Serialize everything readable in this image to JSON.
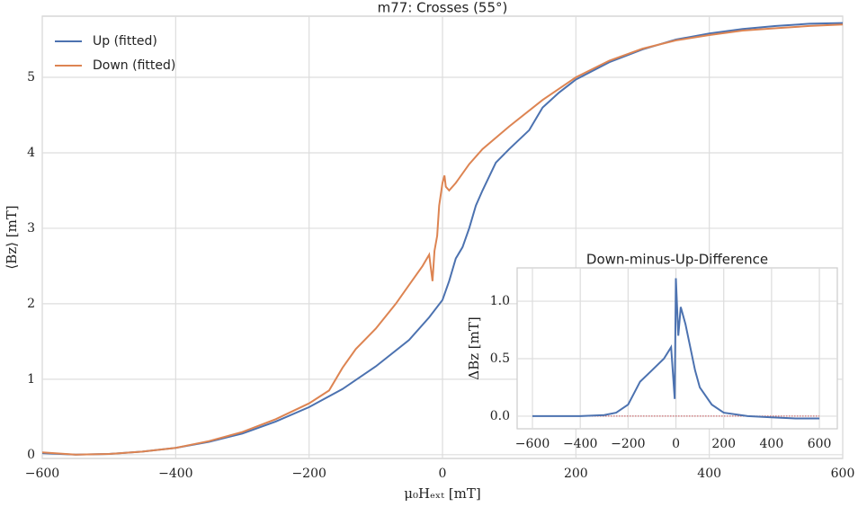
{
  "chart_data": [
    {
      "type": "line",
      "title": "m77: Crosses (55°)",
      "x_label": "μ₀Hₑₓₜ [mT]",
      "y_label": "⟨Bz⟩ [mT]",
      "legend": "upper left",
      "grid": true,
      "xlim": [
        -600,
        600
      ],
      "ylim": [
        -0.05,
        5.81
      ],
      "xticks": [
        {
          "value": -600,
          "label": "−600"
        },
        {
          "value": -400,
          "label": "−400"
        },
        {
          "value": -200,
          "label": "−200"
        },
        0,
        200,
        400,
        600
      ],
      "yticks": [
        0,
        1,
        2,
        3,
        4,
        5
      ],
      "series": [
        {
          "name": "Up (fitted)",
          "color": "#4c72b0",
          "x": [
            -600,
            -550,
            -500,
            -450,
            -400,
            -350,
            -300,
            -250,
            -200,
            -150,
            -100,
            -50,
            -20,
            0,
            10,
            20,
            30,
            40,
            50,
            60,
            80,
            100,
            130,
            150,
            175,
            200,
            250,
            300,
            350,
            400,
            450,
            500,
            550,
            600
          ],
          "values": [
            0.02,
            0.0,
            0.01,
            0.04,
            0.09,
            0.17,
            0.28,
            0.44,
            0.63,
            0.87,
            1.17,
            1.52,
            1.82,
            2.05,
            2.3,
            2.6,
            2.75,
            3.0,
            3.3,
            3.5,
            3.87,
            4.05,
            4.3,
            4.6,
            4.8,
            4.97,
            5.2,
            5.37,
            5.5,
            5.58,
            5.64,
            5.68,
            5.71,
            5.72
          ]
        },
        {
          "name": "Down (fitted)",
          "color": "#dd8452",
          "x": [
            -600,
            -550,
            -500,
            -450,
            -400,
            -350,
            -300,
            -250,
            -200,
            -170,
            -150,
            -130,
            -100,
            -70,
            -50,
            -30,
            -20,
            -15,
            -12,
            -8,
            -5,
            0,
            3,
            5,
            10,
            20,
            40,
            60,
            100,
            150,
            200,
            250,
            300,
            350,
            400,
            450,
            500,
            550,
            600
          ],
          "values": [
            0.03,
            0.0,
            0.01,
            0.04,
            0.09,
            0.18,
            0.3,
            0.47,
            0.68,
            0.85,
            1.15,
            1.4,
            1.67,
            2.0,
            2.25,
            2.5,
            2.65,
            2.3,
            2.7,
            2.9,
            3.3,
            3.6,
            3.7,
            3.55,
            3.5,
            3.6,
            3.85,
            4.05,
            4.35,
            4.7,
            5.0,
            5.22,
            5.38,
            5.49,
            5.56,
            5.62,
            5.65,
            5.68,
            5.7
          ]
        }
      ]
    },
    {
      "type": "line",
      "title": "Down-minus-Up-Difference",
      "y_label": "ΔBz [mT]",
      "grid": true,
      "xlim": [
        -664,
        675
      ],
      "ylim": [
        -0.11,
        1.29
      ],
      "xticks": [
        {
          "value": -600,
          "label": "−600"
        },
        {
          "value": -400,
          "label": "−400"
        },
        {
          "value": -200,
          "label": "−200"
        },
        0,
        200,
        400,
        600
      ],
      "yticks": [
        {
          "value": 0,
          "label": "0.0"
        },
        0.5,
        {
          "value": 1,
          "label": "1.0"
        }
      ],
      "series": [
        {
          "color": "#4c72b0",
          "x": [
            -600,
            -400,
            -300,
            -250,
            -200,
            -150,
            -100,
            -50,
            -20,
            -5,
            0,
            10,
            20,
            40,
            60,
            80,
            100,
            150,
            200,
            300,
            400,
            500,
            600
          ],
          "values": [
            0.0,
            0.0,
            0.01,
            0.03,
            0.1,
            0.3,
            0.4,
            0.5,
            0.6,
            0.15,
            1.2,
            0.7,
            0.95,
            0.8,
            0.6,
            0.4,
            0.25,
            0.1,
            0.03,
            0.0,
            -0.01,
            -0.02,
            -0.02
          ]
        }
      ]
    }
  ]
}
